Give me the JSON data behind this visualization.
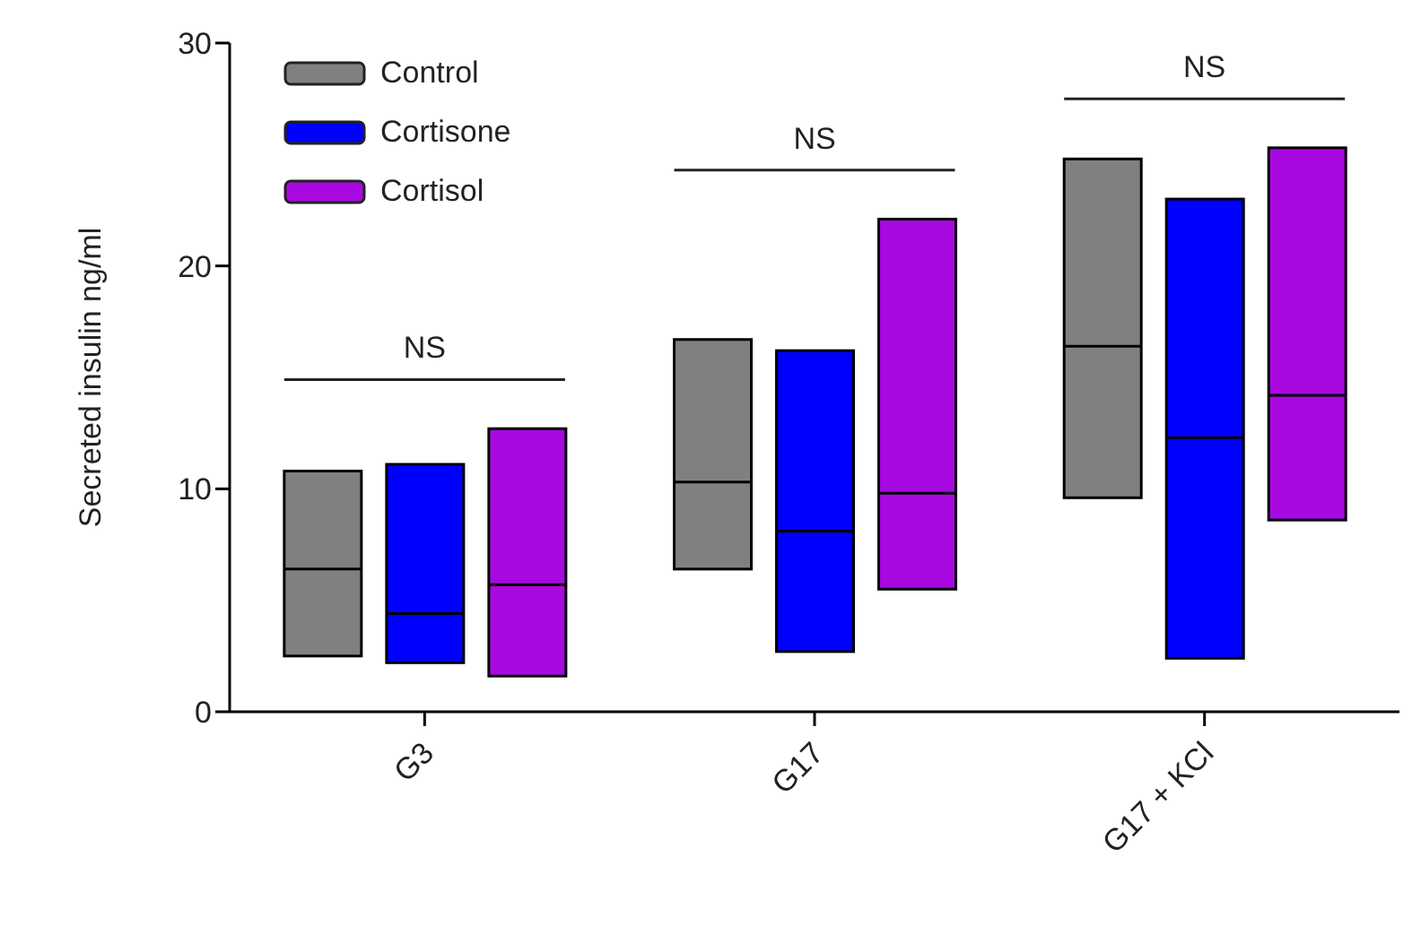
{
  "chart_data": {
    "type": "box",
    "ylabel": "Secreted insulin ng/ml",
    "categories": [
      "G3",
      "G17",
      "G17 + KCl"
    ],
    "ylim": [
      0,
      30
    ],
    "yticks": [
      0,
      10,
      20,
      30
    ],
    "legend": "top left",
    "annotations": [
      "NS",
      "NS",
      "NS"
    ],
    "series": [
      {
        "name": "Control",
        "color": "#808080",
        "boxes": [
          {
            "low": 2.5,
            "q1": 2.5,
            "median": 6.4,
            "q3": 10.8,
            "high": 10.8
          },
          {
            "low": 6.4,
            "q1": 6.4,
            "median": 10.3,
            "q3": 16.7,
            "high": 16.7
          },
          {
            "low": 9.6,
            "q1": 9.6,
            "median": 16.4,
            "q3": 24.8,
            "high": 24.8
          }
        ]
      },
      {
        "name": "Cortisone",
        "color": "#0000ff",
        "boxes": [
          {
            "low": 2.2,
            "q1": 2.2,
            "median": 4.4,
            "q3": 11.1,
            "high": 11.1
          },
          {
            "low": 2.7,
            "q1": 2.7,
            "median": 8.1,
            "q3": 16.2,
            "high": 16.2
          },
          {
            "low": 2.4,
            "q1": 2.4,
            "median": 12.3,
            "q3": 23.0,
            "high": 23.0
          }
        ]
      },
      {
        "name": "Cortisol",
        "color": "#a709e0",
        "boxes": [
          {
            "low": 1.6,
            "q1": 1.6,
            "median": 5.7,
            "q3": 12.7,
            "high": 12.7
          },
          {
            "low": 5.5,
            "q1": 5.5,
            "median": 9.8,
            "q3": 22.1,
            "high": 22.1
          },
          {
            "low": 8.6,
            "q1": 8.6,
            "median": 14.2,
            "q3": 25.3,
            "high": 25.3
          }
        ]
      }
    ]
  }
}
